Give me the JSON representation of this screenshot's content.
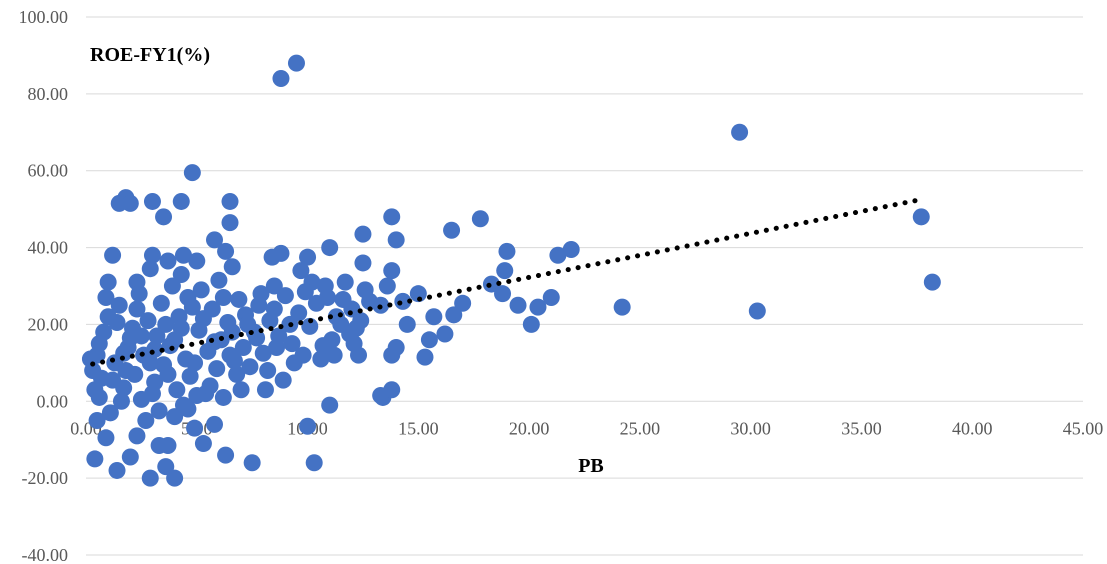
{
  "chart_data": {
    "type": "scatter",
    "xlabel": "PB",
    "ylabel": "ROE-FY1(%)",
    "xlim": [
      0,
      45
    ],
    "ylim": [
      -40,
      100
    ],
    "x_ticks": [
      "0.00",
      "5.00",
      "10.00",
      "15.00",
      "20.00",
      "25.00",
      "30.00",
      "35.00",
      "40.00",
      "45.00"
    ],
    "y_ticks": [
      "-40.00",
      "-20.00",
      "0.00",
      "20.00",
      "40.00",
      "60.00",
      "80.00",
      "100.00"
    ],
    "grid": "horizontal",
    "legend": "none",
    "marker_color": "#4472C4",
    "trendline": {
      "type": "linear",
      "style": "dotted",
      "color": "#000000",
      "x_range": [
        0.3,
        37.6
      ],
      "y_range": [
        9.7,
        52.4
      ]
    },
    "series": [
      {
        "points": [
          [
            9.5,
            88.0
          ],
          [
            8.8,
            84.0
          ],
          [
            29.5,
            70.0
          ],
          [
            4.8,
            59.5
          ],
          [
            1.8,
            53.0
          ],
          [
            1.5,
            51.5
          ],
          [
            3.0,
            52.0
          ],
          [
            4.3,
            52.0
          ],
          [
            6.5,
            52.0
          ],
          [
            6.5,
            46.5
          ],
          [
            3.5,
            48.0
          ],
          [
            2.0,
            51.5
          ],
          [
            37.7,
            48.0
          ],
          [
            38.2,
            31.0
          ],
          [
            30.3,
            23.5
          ],
          [
            24.2,
            24.5
          ],
          [
            17.8,
            47.5
          ],
          [
            16.5,
            44.5
          ],
          [
            14.0,
            42.0
          ],
          [
            12.5,
            43.5
          ],
          [
            13.8,
            48.0
          ],
          [
            11.0,
            40.0
          ],
          [
            19.0,
            39.0
          ],
          [
            21.3,
            38.0
          ],
          [
            21.9,
            39.5
          ],
          [
            18.9,
            34.0
          ],
          [
            18.3,
            30.5
          ],
          [
            18.8,
            28.0
          ],
          [
            19.5,
            25.0
          ],
          [
            20.1,
            20.0
          ],
          [
            20.4,
            24.5
          ],
          [
            21.0,
            27.0
          ],
          [
            17.0,
            25.5
          ],
          [
            16.6,
            22.5
          ],
          [
            16.2,
            17.5
          ],
          [
            15.7,
            22.0
          ],
          [
            15.5,
            16.0
          ],
          [
            15.3,
            11.5
          ],
          [
            14.5,
            20.0
          ],
          [
            15.0,
            28.0
          ],
          [
            13.8,
            12.0
          ],
          [
            13.4,
            1.0
          ],
          [
            13.3,
            1.5
          ],
          [
            13.8,
            3.0
          ],
          [
            14.0,
            14.0
          ],
          [
            12.3,
            12.0
          ],
          [
            12.5,
            36.0
          ],
          [
            13.8,
            34.0
          ],
          [
            10.0,
            37.5
          ],
          [
            8.8,
            38.5
          ],
          [
            8.4,
            37.5
          ],
          [
            5.8,
            42.0
          ],
          [
            6.3,
            39.0
          ],
          [
            4.4,
            38.0
          ],
          [
            3.0,
            38.0
          ],
          [
            3.7,
            36.5
          ],
          [
            2.9,
            34.5
          ],
          [
            6.6,
            35.0
          ],
          [
            1.2,
            38.0
          ],
          [
            1.0,
            31.0
          ],
          [
            2.3,
            31.0
          ],
          [
            4.3,
            33.0
          ],
          [
            5.0,
            36.5
          ],
          [
            7.9,
            28.0
          ],
          [
            8.5,
            30.0
          ],
          [
            9.7,
            34.0
          ],
          [
            10.2,
            31.0
          ],
          [
            11.0,
            -1.0
          ],
          [
            10.0,
            -6.5
          ],
          [
            10.3,
            -16.0
          ],
          [
            7.5,
            -16.0
          ],
          [
            6.3,
            -14.0
          ],
          [
            5.3,
            -11.0
          ],
          [
            4.0,
            -20.0
          ],
          [
            3.6,
            -17.0
          ],
          [
            2.9,
            -20.0
          ],
          [
            1.4,
            -18.0
          ],
          [
            0.4,
            -15.0
          ],
          [
            2.0,
            -14.5
          ],
          [
            3.3,
            -11.5
          ],
          [
            3.7,
            -11.5
          ],
          [
            2.3,
            -9.0
          ],
          [
            0.9,
            -9.5
          ],
          [
            4.0,
            -4.0
          ],
          [
            5.8,
            -6.0
          ],
          [
            4.9,
            -7.0
          ],
          [
            6.2,
            1.0
          ],
          [
            8.1,
            3.0
          ],
          [
            8.9,
            5.5
          ],
          [
            6.8,
            7.0
          ],
          [
            11.1,
            16.0
          ],
          [
            11.5,
            20.0
          ],
          [
            12.0,
            24.0
          ],
          [
            12.6,
            29.0
          ],
          [
            12.8,
            26.0
          ],
          [
            13.3,
            25.0
          ],
          [
            13.6,
            30.0
          ],
          [
            14.3,
            26.0
          ],
          [
            12.2,
            19.0
          ],
          [
            9.8,
            12.0
          ],
          [
            10.6,
            11.0
          ],
          [
            9.2,
            20.0
          ],
          [
            10.9,
            27.0
          ],
          [
            11.7,
            31.0
          ],
          [
            8.6,
            14.0
          ],
          [
            7.4,
            9.0
          ],
          [
            0.3,
            8.0
          ],
          [
            0.5,
            12.0
          ],
          [
            0.7,
            6.0
          ],
          [
            0.4,
            3.0
          ],
          [
            0.8,
            18.0
          ],
          [
            0.6,
            15.0
          ],
          [
            1.0,
            22.0
          ],
          [
            1.3,
            10.0
          ],
          [
            1.5,
            25.0
          ],
          [
            1.7,
            3.5
          ],
          [
            1.9,
            14.0
          ],
          [
            2.1,
            19.0
          ],
          [
            2.2,
            7.0
          ],
          [
            2.4,
            28.0
          ],
          [
            2.5,
            0.5
          ],
          [
            2.6,
            12.0
          ],
          [
            2.8,
            21.0
          ],
          [
            3.1,
            5.0
          ],
          [
            3.2,
            17.0
          ],
          [
            3.4,
            25.5
          ],
          [
            3.5,
            9.5
          ],
          [
            3.8,
            14.5
          ],
          [
            3.9,
            30.0
          ],
          [
            4.1,
            3.0
          ],
          [
            4.2,
            22.0
          ],
          [
            4.5,
            11.0
          ],
          [
            4.6,
            27.0
          ],
          [
            4.7,
            6.5
          ],
          [
            5.1,
            18.5
          ],
          [
            5.2,
            29.0
          ],
          [
            5.4,
            2.0
          ],
          [
            5.5,
            13.0
          ],
          [
            5.7,
            24.0
          ],
          [
            5.9,
            8.5
          ],
          [
            6.0,
            31.5
          ],
          [
            6.1,
            16.0
          ],
          [
            6.4,
            20.5
          ],
          [
            6.7,
            10.5
          ],
          [
            6.9,
            26.5
          ],
          [
            7.1,
            14.0
          ],
          [
            7.2,
            22.5
          ],
          [
            7.6,
            18.0
          ],
          [
            7.8,
            25.0
          ],
          [
            8.0,
            12.5
          ],
          [
            8.3,
            21.0
          ],
          [
            8.7,
            17.0
          ],
          [
            9.0,
            27.5
          ],
          [
            9.3,
            15.0
          ],
          [
            9.6,
            23.0
          ],
          [
            10.1,
            19.5
          ],
          [
            10.4,
            25.5
          ],
          [
            10.7,
            14.5
          ],
          [
            11.3,
            22.0
          ],
          [
            11.9,
            17.5
          ],
          [
            1.1,
            -3.0
          ],
          [
            1.6,
            0.0
          ],
          [
            2.7,
            -5.0
          ],
          [
            3.3,
            -2.5
          ],
          [
            4.4,
            -1.0
          ],
          [
            5.0,
            1.5
          ],
          [
            0.5,
            -5.0
          ],
          [
            1.8,
            8.0
          ],
          [
            2.0,
            16.5
          ],
          [
            2.9,
            10.0
          ],
          [
            3.6,
            20.0
          ],
          [
            4.8,
            24.5
          ],
          [
            5.6,
            4.0
          ],
          [
            6.5,
            12.0
          ],
          [
            7.0,
            3.0
          ],
          [
            0.9,
            27.0
          ],
          [
            1.4,
            20.5
          ],
          [
            2.3,
            24.0
          ],
          [
            3.0,
            2.0
          ],
          [
            4.0,
            16.0
          ],
          [
            4.9,
            10.0
          ],
          [
            5.3,
            21.5
          ],
          [
            6.2,
            27.0
          ],
          [
            7.3,
            20.0
          ],
          [
            8.2,
            8.0
          ],
          [
            9.4,
            10.0
          ],
          [
            10.8,
            30.0
          ],
          [
            11.6,
            26.5
          ],
          [
            12.4,
            21.0
          ],
          [
            0.2,
            11.0
          ],
          [
            0.6,
            1.0
          ],
          [
            1.2,
            5.5
          ],
          [
            1.7,
            12.5
          ],
          [
            2.5,
            17.0
          ],
          [
            3.1,
            13.5
          ],
          [
            3.7,
            7.0
          ],
          [
            4.3,
            19.0
          ],
          [
            4.6,
            -2.0
          ],
          [
            5.8,
            15.5
          ],
          [
            6.6,
            18.0
          ],
          [
            7.7,
            16.5
          ],
          [
            8.5,
            24.0
          ],
          [
            9.9,
            28.5
          ],
          [
            11.2,
            12.0
          ],
          [
            12.1,
            15.0
          ]
        ]
      }
    ]
  }
}
